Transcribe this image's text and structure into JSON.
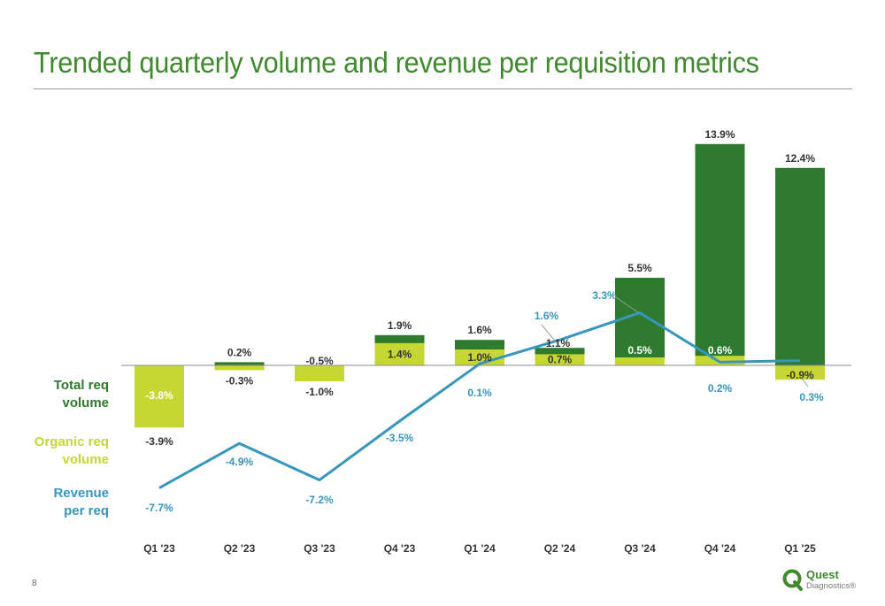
{
  "title": "Trended quarterly volume and revenue per requisition metrics",
  "page_number": "8",
  "legend": {
    "total": [
      "Total req",
      "volume"
    ],
    "organic": [
      "Organic req",
      "volume"
    ],
    "revenue": [
      "Revenue",
      "per req"
    ]
  },
  "logo": {
    "line1": "Quest",
    "line2": "Diagnostics®"
  },
  "colors": {
    "title": "#3f8a2c",
    "total": "#2e7a2e",
    "organic": "#c6d633",
    "revenue": "#3796bb",
    "axis": "#8c8c8c"
  },
  "chart_data": {
    "type": "bar",
    "categories": [
      "Q1 '23",
      "Q2 '23",
      "Q3 '23",
      "Q4 '23",
      "Q1 '24",
      "Q2 '24",
      "Q3 '24",
      "Q4 '24",
      "Q1 '25"
    ],
    "series": [
      {
        "name": "Total req volume",
        "type": "bar",
        "values": [
          -3.8,
          0.2,
          -0.5,
          1.9,
          1.6,
          1.1,
          5.5,
          13.9,
          12.4
        ]
      },
      {
        "name": "Organic req volume",
        "type": "bar",
        "values": [
          -3.9,
          -0.3,
          -1.0,
          1.4,
          1.0,
          0.7,
          0.5,
          0.6,
          -0.9
        ]
      },
      {
        "name": "Revenue per req",
        "type": "line",
        "values": [
          -7.7,
          -4.9,
          -7.2,
          -3.5,
          0.1,
          1.6,
          3.3,
          0.2,
          0.3
        ]
      }
    ],
    "data_labels": {
      "total": [
        "-3.8%",
        "0.2%",
        "-0.5%",
        "1.9%",
        "1.6%",
        "1.1%",
        "5.5%",
        "13.9%",
        "12.4%"
      ],
      "organic": [
        "-3.9%",
        "-0.3%",
        "-1.0%",
        "1.4%",
        "1.0%",
        "0.7%",
        "0.5%",
        "0.6%",
        "-0.9%"
      ],
      "revenue": [
        "-7.7%",
        "-4.9%",
        "-7.2%",
        "-3.5%",
        "0.1%",
        "1.6%",
        "3.3%",
        "0.2%",
        "0.3%"
      ]
    },
    "xlabel": "",
    "ylabel": "",
    "grid": false,
    "legend_placement": "left"
  }
}
